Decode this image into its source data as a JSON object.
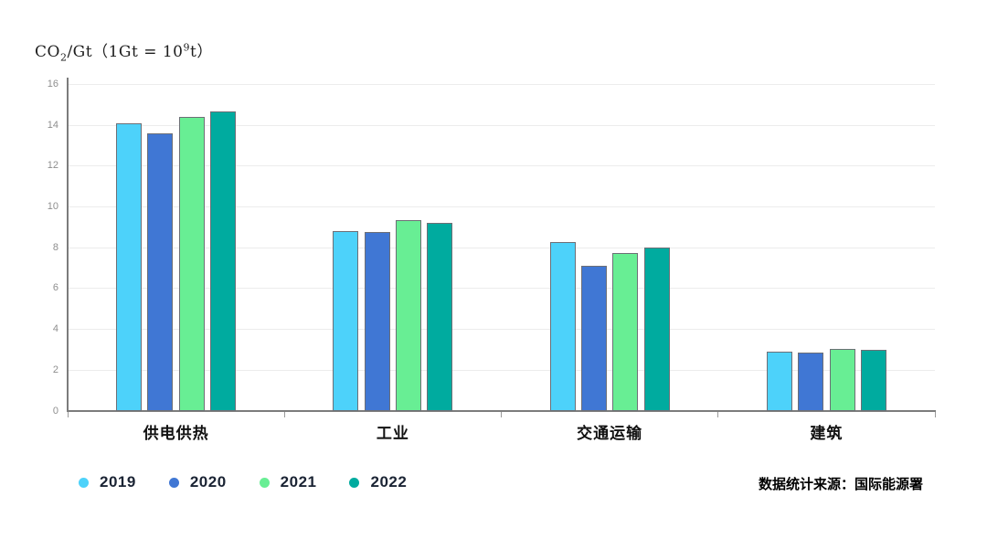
{
  "title": {
    "prefix": "CO",
    "sub": "2",
    "mid": "/Gt（1Gt = 10",
    "sup": "9",
    "suffix": "t）"
  },
  "source_note": "数据统计来源：国际能源署",
  "colors": {
    "series_2019": "#4DD2FA",
    "series_2020": "#4077D4",
    "series_2021": "#68EE94",
    "series_2022": "#00AB9F",
    "axis": "#7c7c7c",
    "gridline": "#ececec",
    "tick_label": "#8e8e8e",
    "category_label": "#111111",
    "legend_text": "#1b2434",
    "background": "#ffffff"
  },
  "chart_data": {
    "type": "bar",
    "title": "CO₂/Gt（1Gt = 10⁹t）",
    "categories": [
      "供电供热",
      "工业",
      "交通运输",
      "建筑"
    ],
    "series": [
      {
        "name": "2019",
        "color": "#4DD2FA",
        "values": [
          14.1,
          8.8,
          8.3,
          2.9
        ]
      },
      {
        "name": "2020",
        "color": "#4077D4",
        "values": [
          13.6,
          8.75,
          7.1,
          2.85
        ]
      },
      {
        "name": "2021",
        "color": "#68EE94",
        "values": [
          14.4,
          9.35,
          7.75,
          3.05
        ]
      },
      {
        "name": "2022",
        "color": "#00AB9F",
        "values": [
          14.7,
          9.2,
          8.0,
          3.0
        ]
      }
    ],
    "ylabel": "CO₂/Gt",
    "ylim": [
      0,
      16
    ],
    "yticks": [
      0,
      2,
      4,
      6,
      8,
      10,
      12,
      14,
      16
    ],
    "grid": true,
    "legend_position": "bottom-left",
    "source": "数据统计来源：国际能源署"
  }
}
